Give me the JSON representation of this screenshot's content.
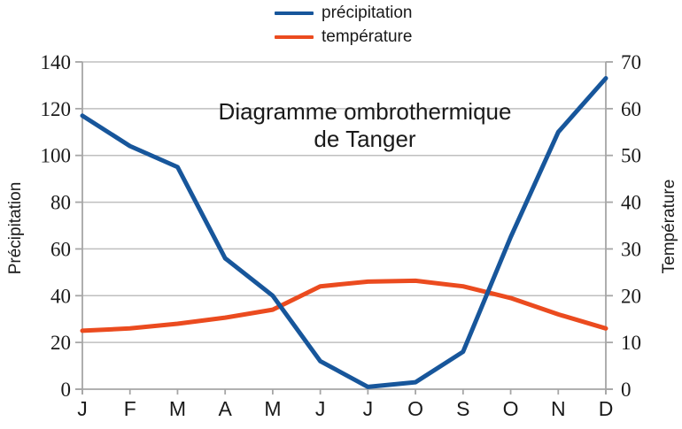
{
  "legend": {
    "items": [
      {
        "label": "précipitation",
        "color": "#17569B"
      },
      {
        "label": "température",
        "color": "#EB4B1F"
      }
    ]
  },
  "title": {
    "line1": "Diagramme ombrothermique",
    "line2": "de Tanger"
  },
  "chart_data": {
    "type": "line",
    "title": "Diagramme ombrothermique de Tanger",
    "categories": [
      "J",
      "F",
      "M",
      "A",
      "M",
      "J",
      "J",
      "O",
      "S",
      "O",
      "N",
      "D"
    ],
    "series": [
      {
        "name": "précipitation",
        "slug": "precipitation",
        "axis": "left",
        "color": "#17569B",
        "values": [
          117,
          104,
          95,
          56,
          40,
          12,
          1,
          3,
          16,
          65,
          110,
          133
        ]
      },
      {
        "name": "température",
        "slug": "temperature",
        "axis": "right",
        "color": "#EB4B1F",
        "values": [
          12.5,
          13,
          14,
          15.3,
          17,
          22,
          23,
          23.2,
          22,
          19.5,
          16,
          13
        ]
      }
    ],
    "ylabel_left": "Précipitation",
    "ylabel_right": "Température",
    "ylim_left": [
      0,
      140
    ],
    "ylim_right": [
      0,
      70
    ],
    "yticks_left": [
      0,
      20,
      40,
      60,
      80,
      100,
      120,
      140
    ],
    "yticks_right": [
      0,
      10,
      20,
      30,
      40,
      50,
      60,
      70
    ],
    "grid": true,
    "legend_position": "top-center"
  },
  "colors": {
    "grid": "#BFBFBF",
    "axis": "#A6A6A6",
    "text": "#1A1A1A"
  }
}
